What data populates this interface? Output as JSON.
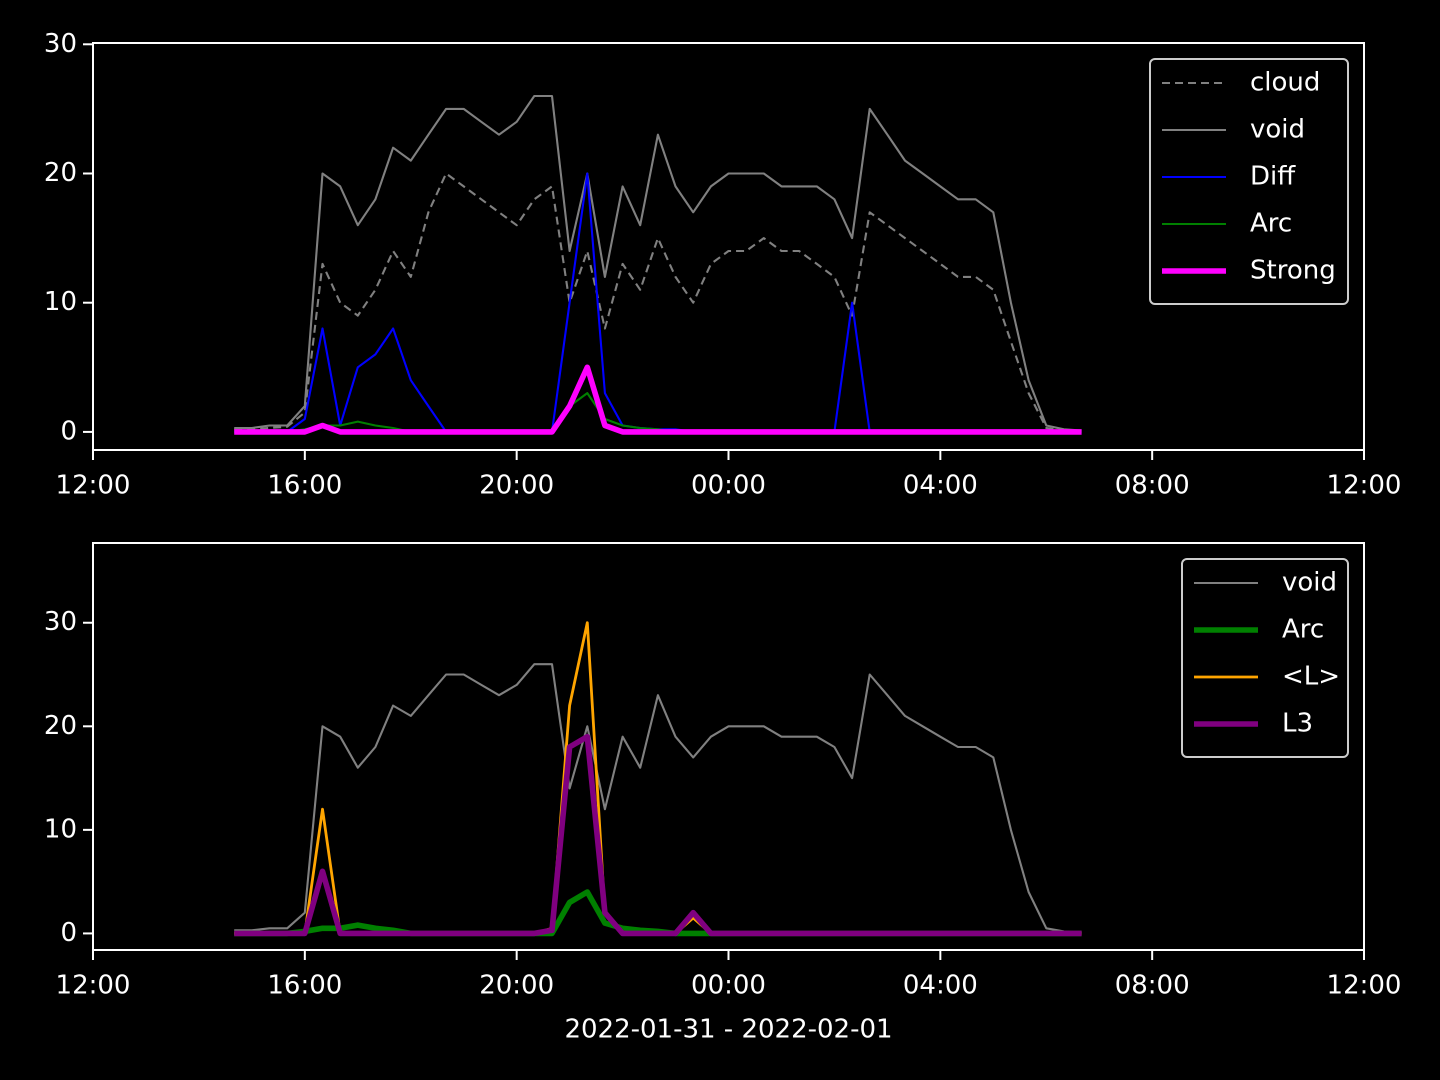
{
  "chart_data": [
    {
      "type": "line",
      "x": [
        2.667,
        3,
        3.333,
        3.667,
        4,
        4.333,
        4.667,
        5,
        5.333,
        5.667,
        6,
        6.333,
        6.667,
        7,
        7.333,
        7.667,
        8,
        8.333,
        8.667,
        9,
        9.333,
        9.667,
        10,
        10.333,
        10.667,
        11,
        11.333,
        11.667,
        12,
        12.333,
        12.667,
        13,
        13.333,
        13.667,
        14,
        14.333,
        14.667,
        15,
        15.333,
        15.667,
        16,
        16.333,
        16.667,
        17,
        17.333,
        17.667,
        18,
        18.333,
        18.667
      ],
      "xlim": [
        0,
        24
      ],
      "xticks": [
        {
          "value": 0,
          "label": "12:00"
        },
        {
          "value": 4,
          "label": "16:00"
        },
        {
          "value": 8,
          "label": "20:00"
        },
        {
          "value": 12,
          "label": "00:00"
        },
        {
          "value": 16,
          "label": "04:00"
        },
        {
          "value": 20,
          "label": "08:00"
        },
        {
          "value": 24,
          "label": "12:00"
        }
      ],
      "ylim": [
        -1.4,
        30.1
      ],
      "yticks": [
        0,
        10,
        20,
        30
      ],
      "legend": "upper right",
      "series": [
        {
          "name": "cloud",
          "color": "#808080",
          "linestyle": "dashed",
          "linewidth": 1.5,
          "values": [
            0.2,
            0.2,
            0.3,
            0.4,
            1.5,
            13,
            10,
            9,
            11,
            14,
            12,
            17,
            20,
            19,
            18,
            17,
            16,
            18,
            19,
            10,
            14,
            8,
            13,
            11,
            15,
            12,
            10,
            13,
            14,
            14,
            15,
            14,
            14,
            13,
            12,
            9,
            17,
            16,
            15,
            14,
            13,
            12,
            12,
            11,
            7,
            3,
            0.3,
            0.1,
            0.1
          ]
        },
        {
          "name": "void",
          "color": "#808080",
          "linestyle": "solid",
          "linewidth": 1.5,
          "values": [
            0.3,
            0.3,
            0.5,
            0.5,
            2,
            20,
            19,
            16,
            18,
            22,
            21,
            23,
            25,
            25,
            24,
            23,
            24,
            26,
            26,
            14,
            20,
            12,
            19,
            16,
            23,
            19,
            17,
            19,
            20,
            20,
            20,
            19,
            19,
            19,
            18,
            15,
            25,
            23,
            21,
            20,
            19,
            18,
            18,
            17,
            10,
            4,
            0.5,
            0.2,
            0.1
          ]
        },
        {
          "name": "Diff",
          "color": "#0000ff",
          "linestyle": "solid",
          "linewidth": 1.5,
          "values": [
            0,
            0,
            0,
            0,
            1,
            8,
            0.5,
            5,
            6,
            8,
            4,
            2,
            0,
            0,
            0,
            0,
            0,
            0,
            0,
            10,
            20,
            3,
            0.5,
            0.3,
            0.2,
            0.2,
            0,
            0,
            0,
            0,
            0,
            0,
            0,
            0,
            0,
            10,
            0,
            0,
            0,
            0,
            0,
            0,
            0,
            0,
            0,
            0,
            0,
            0,
            0
          ]
        },
        {
          "name": "Arc",
          "color": "#008000",
          "linestyle": "solid",
          "linewidth": 1.5,
          "values": [
            0,
            0,
            0,
            0,
            0.2,
            0.5,
            0.5,
            0.8,
            0.5,
            0.3,
            0,
            0,
            0,
            0,
            0,
            0,
            0,
            0,
            0,
            2,
            3,
            1,
            0.5,
            0.3,
            0.2,
            0,
            0,
            0,
            0,
            0,
            0,
            0,
            0,
            0,
            0,
            0,
            0,
            0,
            0,
            0,
            0,
            0,
            0,
            0,
            0,
            0,
            0,
            0,
            0
          ]
        },
        {
          "name": "Strong",
          "color": "#ff00ff",
          "linestyle": "solid",
          "linewidth": 4,
          "values": [
            0,
            0,
            0,
            0,
            0,
            0.5,
            0,
            0,
            0,
            0,
            0,
            0,
            0,
            0,
            0,
            0,
            0,
            0,
            0,
            2,
            5,
            0.5,
            0,
            0,
            0,
            0,
            0,
            0,
            0,
            0,
            0,
            0,
            0,
            0,
            0,
            0,
            0,
            0,
            0,
            0,
            0,
            0,
            0,
            0,
            0,
            0,
            0,
            0,
            0
          ]
        }
      ]
    },
    {
      "type": "line",
      "x": [
        2.667,
        3,
        3.333,
        3.667,
        4,
        4.333,
        4.667,
        5,
        5.333,
        5.667,
        6,
        6.333,
        6.667,
        7,
        7.333,
        7.667,
        8,
        8.333,
        8.667,
        9,
        9.333,
        9.667,
        10,
        10.333,
        10.667,
        11,
        11.333,
        11.667,
        12,
        12.333,
        12.667,
        13,
        13.333,
        13.667,
        14,
        14.333,
        14.667,
        15,
        15.333,
        15.667,
        16,
        16.333,
        16.667,
        17,
        17.333,
        17.667,
        18,
        18.333,
        18.667
      ],
      "xlim": [
        0,
        24
      ],
      "xticks": [
        {
          "value": 0,
          "label": "12:00"
        },
        {
          "value": 4,
          "label": "16:00"
        },
        {
          "value": 8,
          "label": "20:00"
        },
        {
          "value": 12,
          "label": "00:00"
        },
        {
          "value": 16,
          "label": "04:00"
        },
        {
          "value": 20,
          "label": "08:00"
        },
        {
          "value": 24,
          "label": "12:00"
        }
      ],
      "ylim": [
        -1.6,
        37.7
      ],
      "yticks": [
        0,
        10,
        20,
        30
      ],
      "xlabel": "2022-01-31 - 2022-02-01",
      "legend": "upper right",
      "series": [
        {
          "name": "void",
          "color": "#808080",
          "linestyle": "solid",
          "linewidth": 1.5,
          "values": [
            0.3,
            0.3,
            0.5,
            0.5,
            2,
            20,
            19,
            16,
            18,
            22,
            21,
            23,
            25,
            25,
            24,
            23,
            24,
            26,
            26,
            14,
            20,
            12,
            19,
            16,
            23,
            19,
            17,
            19,
            20,
            20,
            20,
            19,
            19,
            19,
            18,
            15,
            25,
            23,
            21,
            20,
            19,
            18,
            18,
            17,
            10,
            4,
            0.5,
            0.2,
            0.1
          ]
        },
        {
          "name": "Arc",
          "color": "#008000",
          "linestyle": "solid",
          "linewidth": 4,
          "values": [
            0,
            0,
            0,
            0,
            0.2,
            0.5,
            0.5,
            0.8,
            0.5,
            0.3,
            0,
            0,
            0,
            0,
            0,
            0,
            0,
            0,
            0,
            3,
            4,
            1,
            0.5,
            0.3,
            0.2,
            0,
            0,
            0,
            0,
            0,
            0,
            0,
            0,
            0,
            0,
            0,
            0,
            0,
            0,
            0,
            0,
            0,
            0,
            0,
            0,
            0,
            0,
            0,
            0
          ]
        },
        {
          "name": "<L>",
          "color": "#ffa500",
          "linestyle": "solid",
          "linewidth": 2,
          "values": [
            0,
            0,
            0,
            0,
            0,
            12,
            0,
            0,
            0,
            0,
            0,
            0,
            0,
            0,
            0,
            0,
            0,
            0,
            0.5,
            22,
            30,
            2,
            0,
            0,
            0,
            0,
            1.5,
            0,
            0,
            0,
            0,
            0,
            0,
            0,
            0,
            0,
            0,
            0,
            0,
            0,
            0,
            0,
            0,
            0,
            0,
            0,
            0,
            0,
            0
          ]
        },
        {
          "name": "L3",
          "color": "#800080",
          "linestyle": "solid",
          "linewidth": 4,
          "values": [
            0,
            0,
            0,
            0,
            0,
            6,
            0,
            0,
            0,
            0,
            0,
            0,
            0,
            0,
            0,
            0,
            0,
            0,
            0.3,
            18,
            19,
            2,
            0,
            0,
            0,
            0,
            2,
            0,
            0,
            0,
            0,
            0,
            0,
            0,
            0,
            0,
            0,
            0,
            0,
            0,
            0,
            0,
            0,
            0,
            0,
            0,
            0,
            0,
            0
          ]
        }
      ]
    }
  ]
}
